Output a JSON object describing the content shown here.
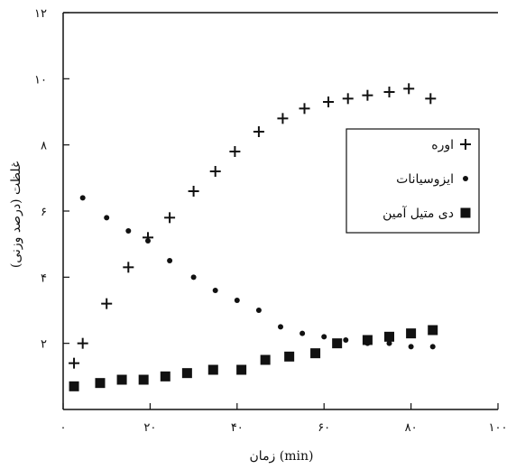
{
  "chart_data": {
    "type": "scatter",
    "xlabel": "زمان (min)",
    "ylabel": "غلظت (درصد وزنی)",
    "xlim": [
      0,
      100
    ],
    "ylim": [
      0,
      12
    ],
    "x_ticks": [
      0,
      20,
      40,
      60,
      80,
      100
    ],
    "x_tick_labels": [
      "۰",
      "۲۰",
      "۴۰",
      "۶۰",
      "۸۰",
      "۱۰۰"
    ],
    "y_ticks": [
      2,
      4,
      6,
      8,
      10,
      12
    ],
    "y_tick_labels": [
      "۲",
      "۴",
      "۶",
      "۸",
      "۱۰",
      "۱۲"
    ],
    "grid": false,
    "legend_position": "center-right",
    "series": [
      {
        "name": "اوره",
        "marker": "plus",
        "color": "#111111",
        "x": [
          2.5,
          4.5,
          10,
          15,
          19.5,
          24.5,
          30,
          35,
          39.5,
          45,
          50.5,
          55.5,
          61,
          65.5,
          70,
          75,
          79.5,
          84.5
        ],
        "y": [
          1.4,
          2.0,
          3.2,
          4.3,
          5.2,
          5.8,
          6.6,
          7.2,
          7.8,
          8.4,
          8.8,
          9.1,
          9.3,
          9.4,
          9.5,
          9.6,
          9.7,
          9.4
        ]
      },
      {
        "name": "ایزوسیانات",
        "marker": "dot",
        "color": "#111111",
        "x": [
          4.5,
          10,
          15,
          19.5,
          24.5,
          30,
          35,
          40,
          45,
          50,
          55,
          60,
          65,
          70,
          75,
          80,
          85
        ],
        "y": [
          6.4,
          5.8,
          5.4,
          5.1,
          4.5,
          4.0,
          3.6,
          3.3,
          3.0,
          2.5,
          2.3,
          2.2,
          2.1,
          2.0,
          2.0,
          1.9,
          1.9
        ]
      },
      {
        "name": "دی متیل آمین",
        "marker": "square",
        "color": "#111111",
        "x": [
          2.5,
          8.5,
          13.5,
          18.5,
          23.5,
          28.5,
          34.5,
          41,
          46.5,
          52,
          58,
          63,
          70,
          75,
          80,
          85
        ],
        "y": [
          0.7,
          0.8,
          0.9,
          0.9,
          1.0,
          1.1,
          1.2,
          1.2,
          1.5,
          1.6,
          1.7,
          2.0,
          2.1,
          2.2,
          2.3,
          2.4
        ]
      }
    ]
  }
}
